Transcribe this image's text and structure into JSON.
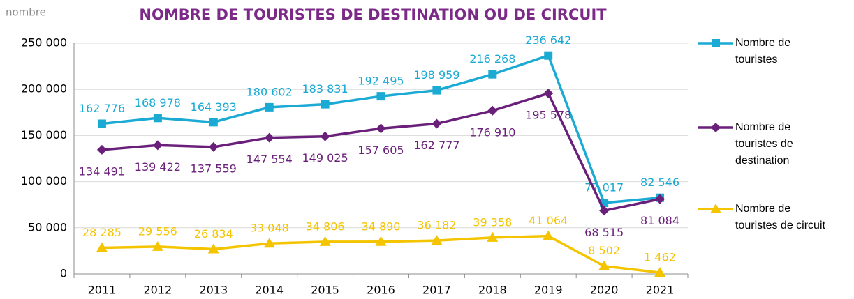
{
  "chart_data": {
    "type": "line",
    "title": "NOMBRE DE TOURISTES DE DESTINATION OU DE CIRCUIT",
    "y_label": "nombre",
    "categories": [
      "2011",
      "2012",
      "2013",
      "2014",
      "2015",
      "2016",
      "2017",
      "2018",
      "2019",
      "2020",
      "2021"
    ],
    "series": [
      {
        "name": "Nombre de touristes",
        "color": "#1aaad3",
        "marker": "square",
        "label_position": "above",
        "values": [
          162776,
          168978,
          164393,
          180602,
          183831,
          192495,
          198959,
          216268,
          236642,
          77017,
          82546
        ],
        "value_labels": [
          "162 776",
          "168 978",
          "164 393",
          "180 602",
          "183 831",
          "192 495",
          "198 959",
          "216 268",
          "236 642",
          "77 017",
          "82 546"
        ]
      },
      {
        "name": "Nombre de touristes de destination",
        "color": "#6a1f7a",
        "marker": "diamond",
        "label_position": "below",
        "values": [
          134491,
          139422,
          137559,
          147554,
          149025,
          157605,
          162777,
          176910,
          195578,
          68515,
          81084
        ],
        "value_labels": [
          "134 491",
          "139 422",
          "137 559",
          "147 554",
          "149 025",
          "157 605",
          "162 777",
          "176 910",
          "195 578",
          "68 515",
          "81 084"
        ]
      },
      {
        "name": "Nombre de touristes de circuit",
        "color": "#f5c400",
        "marker": "triangle",
        "label_position": "above",
        "values": [
          28285,
          29556,
          26834,
          33048,
          34806,
          34890,
          36182,
          39358,
          41064,
          8502,
          1462
        ],
        "value_labels": [
          "28 285",
          "29 556",
          "26 834",
          "33 048",
          "34 806",
          "34 890",
          "36 182",
          "39 358",
          "41 064",
          "8 502",
          "1 462"
        ]
      }
    ],
    "ylim": [
      0,
      250000
    ],
    "yticks": [
      0,
      {
        "value": 50000,
        "label": "50 000"
      },
      {
        "value": 100000,
        "label": "100 000"
      },
      {
        "value": 150000,
        "label": "150 000"
      },
      {
        "value": 200000,
        "label": "200 000"
      },
      {
        "value": 250000,
        "label": "250 000"
      }
    ],
    "grid": true,
    "legend": "right"
  }
}
